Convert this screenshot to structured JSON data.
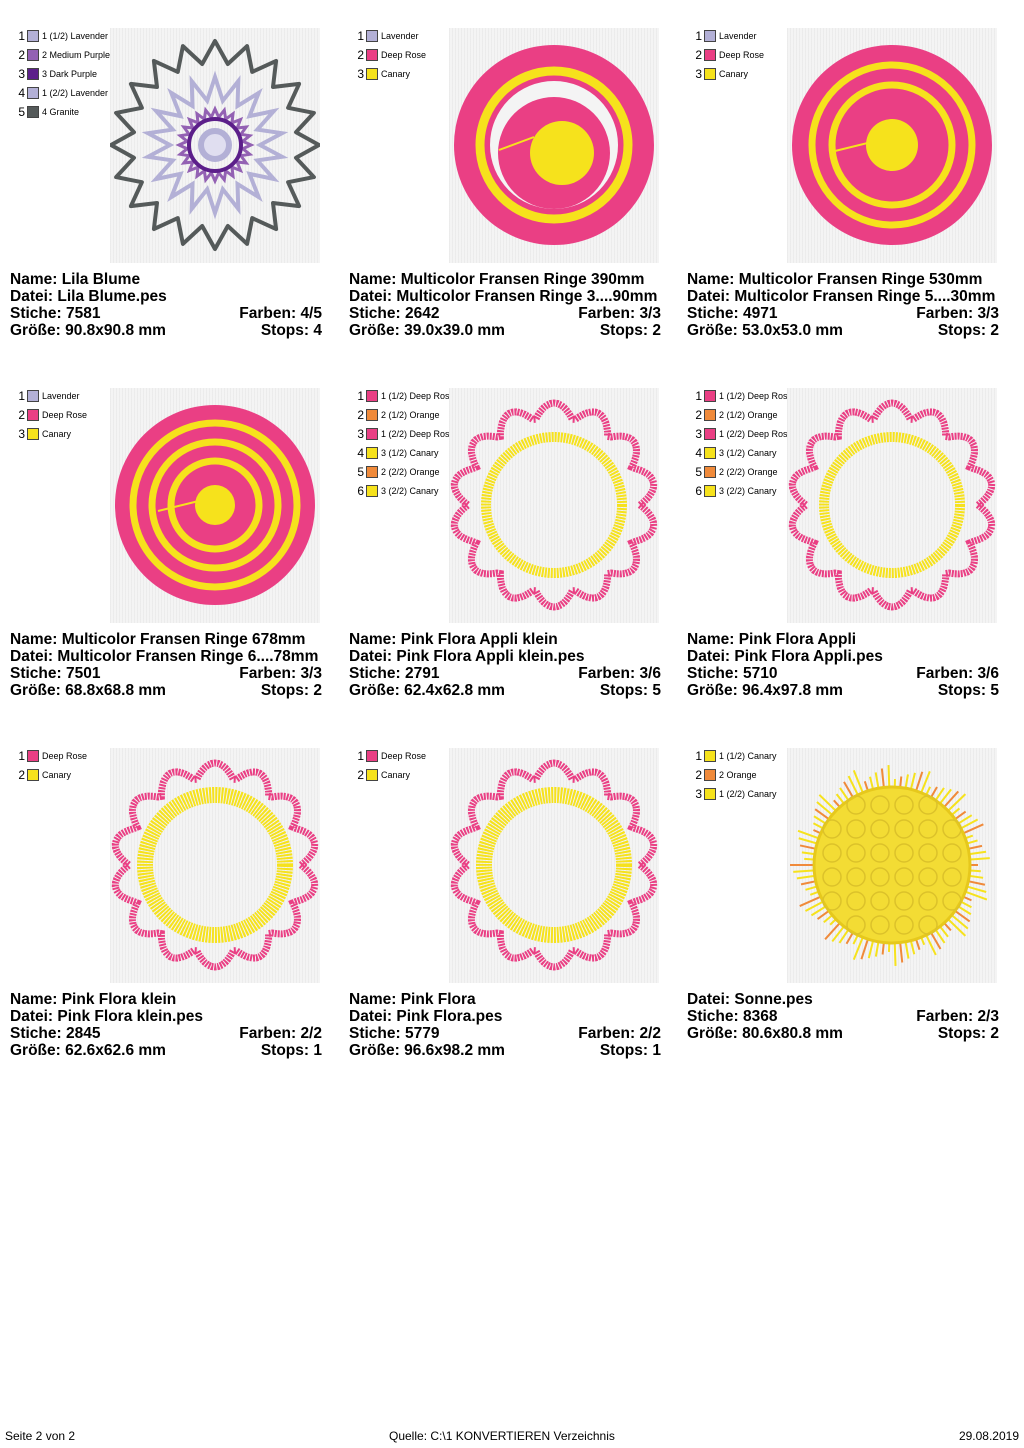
{
  "labels": {
    "name": "Name:",
    "file": "Datei:",
    "stitches": "Stiche:",
    "colors": "Farben:",
    "size": "Größe:",
    "stops": "Stops:"
  },
  "designs": [
    {
      "name": "Lila Blume",
      "file": "Lila Blume.pes",
      "stitches": "7581",
      "colors": "4/5",
      "size": "90.8x90.8 mm",
      "stops": "4",
      "art": "lila",
      "threads": [
        {
          "num": "1",
          "label": "1 (1/2) Lavender",
          "color": "#b3b0d6"
        },
        {
          "num": "2",
          "label": "2 Medium Purple",
          "color": "#9361b3"
        },
        {
          "num": "3",
          "label": "3 Dark Purple",
          "color": "#5c1f8a"
        },
        {
          "num": "4",
          "label": "1 (2/2) Lavender",
          "color": "#b3b0d6"
        },
        {
          "num": "5",
          "label": "4 Granite",
          "color": "#555a5a"
        }
      ]
    },
    {
      "name": "Multicolor Fransen Ringe 390mm",
      "file": "Multicolor Fransen Ringe 3....90mm",
      "stitches": "2642",
      "colors": "3/3",
      "size": "39.0x39.0 mm",
      "stops": "2",
      "art": "rings1",
      "threads": [
        {
          "num": "1",
          "label": "Lavender",
          "color": "#b3b0d6"
        },
        {
          "num": "2",
          "label": "Deep Rose",
          "color": "#ea3f84"
        },
        {
          "num": "3",
          "label": "Canary",
          "color": "#f6e21c"
        }
      ]
    },
    {
      "name": "Multicolor Fransen Ringe 530mm",
      "file": "Multicolor Fransen Ringe 5....30mm",
      "stitches": "4971",
      "colors": "3/3",
      "size": "53.0x53.0 mm",
      "stops": "2",
      "art": "rings2",
      "threads": [
        {
          "num": "1",
          "label": "Lavender",
          "color": "#b3b0d6"
        },
        {
          "num": "2",
          "label": "Deep Rose",
          "color": "#ea3f84"
        },
        {
          "num": "3",
          "label": "Canary",
          "color": "#f6e21c"
        }
      ]
    },
    {
      "name": "Multicolor Fransen Ringe 678mm",
      "file": "Multicolor Fransen Ringe 6....78mm",
      "stitches": "7501",
      "colors": "3/3",
      "size": "68.8x68.8 mm",
      "stops": "2",
      "art": "rings3",
      "threads": [
        {
          "num": "1",
          "label": "Lavender",
          "color": "#b3b0d6"
        },
        {
          "num": "2",
          "label": "Deep Rose",
          "color": "#ea3f84"
        },
        {
          "num": "3",
          "label": "Canary",
          "color": "#f6e21c"
        }
      ]
    },
    {
      "name": "Pink Flora Appli klein",
      "file": "Pink Flora Appli klein.pes",
      "stitches": "2791",
      "colors": "3/6",
      "size": "62.4x62.8 mm",
      "stops": "5",
      "art": "floraThin",
      "threads": [
        {
          "num": "1",
          "label": "1 (1/2) Deep Ros",
          "color": "#ea3f84"
        },
        {
          "num": "2",
          "label": "2 (1/2) Orange",
          "color": "#f08a3a"
        },
        {
          "num": "3",
          "label": "1 (2/2) Deep Ros",
          "color": "#ea3f84"
        },
        {
          "num": "4",
          "label": "3 (1/2) Canary",
          "color": "#f6e21c"
        },
        {
          "num": "5",
          "label": "2 (2/2) Orange",
          "color": "#f08a3a"
        },
        {
          "num": "6",
          "label": "3 (2/2) Canary",
          "color": "#f6e21c"
        }
      ]
    },
    {
      "name": "Pink Flora Appli",
      "file": "Pink Flora Appli.pes",
      "stitches": "5710",
      "colors": "3/6",
      "size": "96.4x97.8 mm",
      "stops": "5",
      "art": "floraThin",
      "threads": [
        {
          "num": "1",
          "label": "1 (1/2) Deep Ros",
          "color": "#ea3f84"
        },
        {
          "num": "2",
          "label": "2 (1/2) Orange",
          "color": "#f08a3a"
        },
        {
          "num": "3",
          "label": "1 (2/2) Deep Ros",
          "color": "#ea3f84"
        },
        {
          "num": "4",
          "label": "3 (1/2) Canary",
          "color": "#f6e21c"
        },
        {
          "num": "5",
          "label": "2 (2/2) Orange",
          "color": "#f08a3a"
        },
        {
          "num": "6",
          "label": "3 (2/2) Canary",
          "color": "#f6e21c"
        }
      ]
    },
    {
      "name": "Pink Flora klein",
      "file": "Pink Flora klein.pes",
      "stitches": "2845",
      "colors": "2/2",
      "size": "62.6x62.6 mm",
      "stops": "1",
      "art": "flora",
      "threads": [
        {
          "num": "1",
          "label": "Deep Rose",
          "color": "#ea3f84"
        },
        {
          "num": "2",
          "label": "Canary",
          "color": "#f6e21c"
        }
      ]
    },
    {
      "name": "Pink Flora",
      "file": "Pink Flora.pes",
      "stitches": "5779",
      "colors": "2/2",
      "size": "96.6x98.2 mm",
      "stops": "1",
      "art": "flora",
      "threads": [
        {
          "num": "1",
          "label": "Deep Rose",
          "color": "#ea3f84"
        },
        {
          "num": "2",
          "label": "Canary",
          "color": "#f6e21c"
        }
      ]
    },
    {
      "name": "",
      "file": "Sonne.pes",
      "stitches": "8368",
      "colors": "2/3",
      "size": "80.6x80.8 mm",
      "stops": "2",
      "art": "sun",
      "threads": [
        {
          "num": "1",
          "label": "1 (1/2) Canary",
          "color": "#f6e21c"
        },
        {
          "num": "2",
          "label": "2 Orange",
          "color": "#f08a3a"
        },
        {
          "num": "3",
          "label": "1 (2/2) Canary",
          "color": "#f6e21c"
        }
      ]
    }
  ],
  "footer": {
    "page": "Seite 2 von 2",
    "source": "Quelle: C:\\1 KONVERTIEREN Verzeichnis",
    "date": "29.08.2019"
  }
}
